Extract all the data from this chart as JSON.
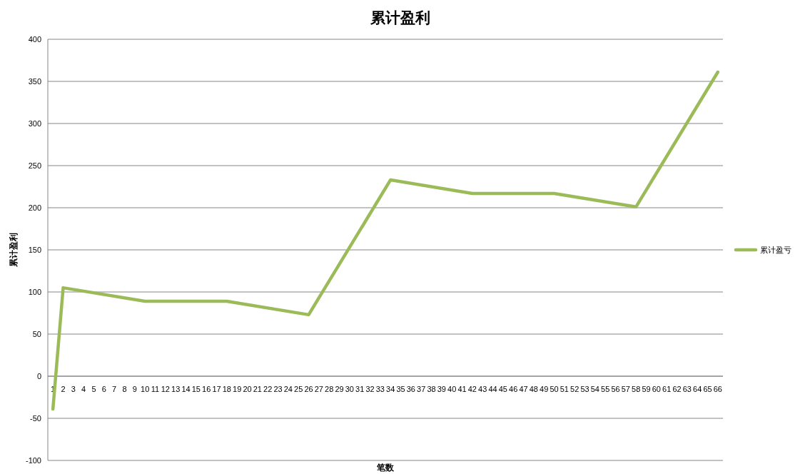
{
  "chart_data": {
    "type": "line",
    "title": "累计盈利",
    "xlabel": "笔数",
    "ylabel": "累计盈利",
    "xlim": [
      0.5,
      66.5
    ],
    "xticks": [
      1,
      2,
      3,
      4,
      5,
      6,
      7,
      8,
      9,
      10,
      11,
      12,
      13,
      14,
      15,
      16,
      17,
      18,
      19,
      20,
      21,
      22,
      23,
      24,
      25,
      26,
      27,
      28,
      29,
      30,
      31,
      32,
      33,
      34,
      35,
      36,
      37,
      38,
      39,
      40,
      41,
      42,
      43,
      44,
      45,
      46,
      47,
      48,
      49,
      50,
      51,
      52,
      53,
      54,
      55,
      56,
      57,
      58,
      59,
      60,
      61,
      62,
      63,
      64,
      65,
      66
    ],
    "ylim": [
      -100,
      400
    ],
    "yticks": [
      -100,
      -50,
      0,
      50,
      100,
      150,
      200,
      250,
      300,
      350,
      400
    ],
    "grid": "y",
    "legend": "right",
    "series": [
      {
        "name": "累计盈亏",
        "color": "#9bbb59",
        "x": [
          1,
          2,
          10,
          18,
          26,
          34,
          42,
          50,
          58,
          66
        ],
        "values": [
          -39,
          105,
          89,
          89,
          73,
          233,
          217,
          217,
          201,
          361
        ]
      }
    ]
  }
}
